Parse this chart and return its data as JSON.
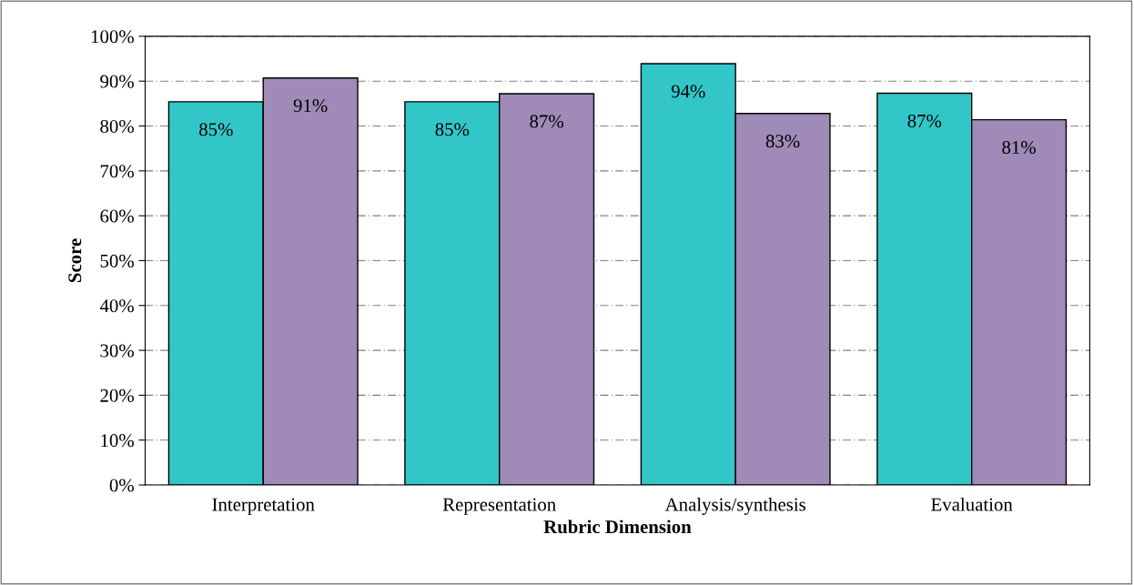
{
  "chart_data": {
    "type": "bar",
    "xlabel": "Rubric Dimension",
    "ylabel": "Score",
    "categories": [
      "Interpretation",
      "Representation",
      "Analysis/synthesis",
      "Evaluation"
    ],
    "series": [
      {
        "color": "#33c6c9",
        "values": [
          85.4,
          85.4,
          93.9,
          87.3
        ],
        "value_labels": [
          "85%",
          "85%",
          "94%",
          "87%"
        ]
      },
      {
        "color": "#a08ab8",
        "values": [
          90.7,
          87.2,
          82.8,
          81.4
        ],
        "value_labels": [
          "91%",
          "87%",
          "83%",
          "81%"
        ]
      }
    ],
    "ylim": [
      0,
      100
    ],
    "yticks": [
      {
        "value": 0,
        "label": "0%"
      },
      {
        "value": 10,
        "label": "10%"
      },
      {
        "value": 20,
        "label": "20%"
      },
      {
        "value": 30,
        "label": "30%"
      },
      {
        "value": 40,
        "label": "40%"
      },
      {
        "value": 50,
        "label": "50%"
      },
      {
        "value": 60,
        "label": "60%"
      },
      {
        "value": 70,
        "label": "70%"
      },
      {
        "value": 80,
        "label": "80%"
      },
      {
        "value": 90,
        "label": "90%"
      },
      {
        "value": 100,
        "label": "100%"
      }
    ],
    "grid": "y",
    "legend": false
  }
}
